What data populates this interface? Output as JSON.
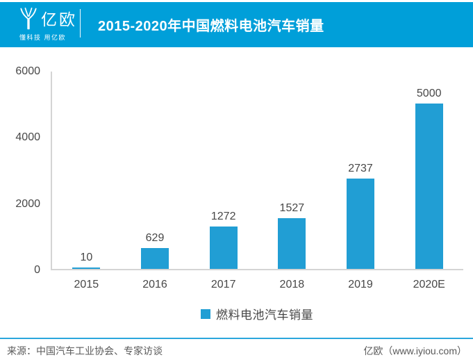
{
  "header": {
    "background_color": "#009FD9",
    "logo": {
      "name": "亿欧",
      "tagline": "懂科技 用亿欧"
    },
    "title": "2015-2020年中国燃料电池汽车销量"
  },
  "chart_data": {
    "type": "bar",
    "title": "2015-2020年中国燃料电池汽车销量",
    "categories": [
      "2015",
      "2016",
      "2017",
      "2018",
      "2019",
      "2020E"
    ],
    "values": [
      10,
      629,
      1272,
      1527,
      2737,
      5000
    ],
    "series_name": "燃料电池汽车销量",
    "xlabel": "",
    "ylabel": "",
    "ylim": [
      0,
      6000
    ],
    "yticks": [
      0,
      2000,
      4000,
      6000
    ],
    "grid": false,
    "value_labels": true,
    "legend_position": "bottom",
    "bar_color": "#219ED4",
    "axis_color": "#D4D4D4",
    "label_color": "#474747"
  },
  "legend": {
    "label": "燃料电池汽车销量",
    "swatch_color": "#219ED4"
  },
  "footer": {
    "source": "来源：中国汽车工业协会、专家访谈",
    "credit": "亿欧（www.iyiou.com）",
    "divider_color": "#2AA7DC"
  }
}
